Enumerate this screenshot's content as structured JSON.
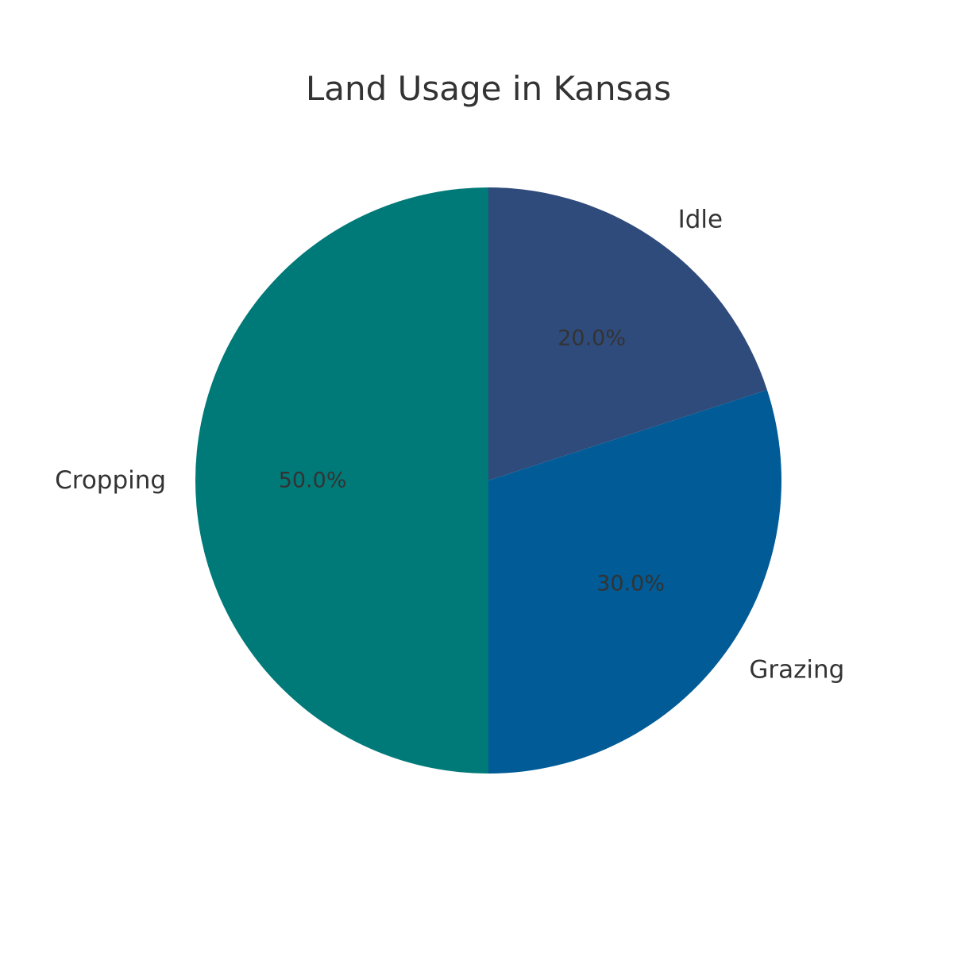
{
  "chart_data": {
    "type": "pie",
    "title": "Land Usage in Kansas",
    "categories": [
      "Idle",
      "Grazing",
      "Cropping"
    ],
    "values": [
      20.0,
      30.0,
      50.0
    ],
    "percent_labels": [
      "20.0%",
      "30.0%",
      "50.0%"
    ],
    "colors": [
      "#2f4b7c",
      "#005b96",
      "#007a78"
    ],
    "start_angle": "12 o'clock",
    "direction": "clockwise",
    "legend": "none"
  }
}
